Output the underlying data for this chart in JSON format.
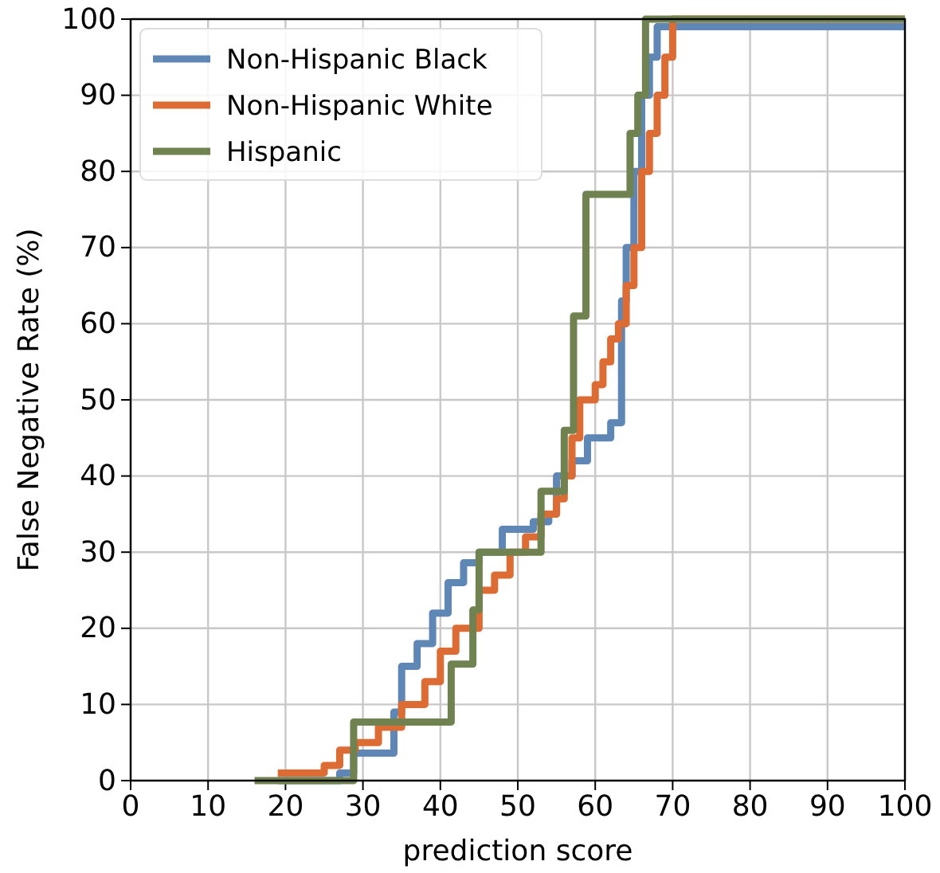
{
  "chart_data": {
    "type": "step",
    "xlabel": "prediction score",
    "ylabel": "False Negative Rate (%)",
    "xlim": [
      0,
      100
    ],
    "ylim": [
      0,
      100
    ],
    "xticks": [
      0,
      10,
      20,
      30,
      40,
      50,
      60,
      70,
      80,
      90,
      100
    ],
    "yticks": [
      0,
      10,
      20,
      30,
      40,
      50,
      60,
      70,
      80,
      90,
      100
    ],
    "grid": true,
    "legend": "top left",
    "line_style": "solid",
    "marker": "none",
    "series": [
      {
        "name": "Non-Hispanic Black",
        "color": "#5f87b5",
        "x": [
          19,
          27,
          28.8,
          34,
          35,
          37,
          39,
          41,
          43,
          45,
          48,
          52,
          54,
          55,
          57,
          59,
          62,
          63.4,
          64,
          65,
          66,
          67,
          68,
          100
        ],
        "values": [
          0,
          1,
          3.6,
          9,
          15,
          18,
          22,
          26,
          28.6,
          30,
          33,
          34,
          35,
          40,
          42,
          45,
          47,
          63,
          70,
          80,
          90,
          95,
          99,
          99
        ]
      },
      {
        "name": "Non-Hispanic White",
        "color": "#dd6b34",
        "x": [
          19,
          25,
          27,
          29,
          32,
          35,
          38,
          40,
          42,
          45,
          47,
          49,
          51,
          53,
          55,
          56,
          57,
          58,
          60,
          61,
          62,
          63,
          64,
          65,
          66,
          67,
          68,
          69,
          70,
          100
        ],
        "values": [
          1,
          2,
          4,
          5,
          7,
          10,
          13,
          17,
          20,
          25,
          27,
          30,
          32,
          35,
          37,
          40,
          45,
          50,
          52,
          55,
          58,
          60,
          65,
          70,
          80,
          85,
          90,
          95,
          100,
          100
        ]
      },
      {
        "name": "Hispanic",
        "color": "#6f8250",
        "x": [
          16,
          28.8,
          41.4,
          44.2,
          45,
          53,
          53.5,
          56,
          57.2,
          58.8,
          64.5,
          65.5,
          66.5,
          67.5,
          100
        ],
        "values": [
          0,
          7.7,
          15.3,
          22.4,
          30,
          38,
          38,
          46,
          61,
          77,
          85,
          90,
          100,
          100,
          100
        ]
      }
    ]
  }
}
